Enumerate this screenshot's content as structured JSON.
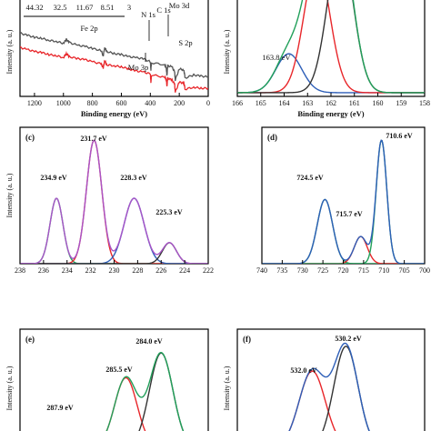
{
  "chart_data": [
    {
      "panel": "a",
      "panel_label": "",
      "type": "line",
      "xlabel": "Binding energy (eV)",
      "ylabel": "Intensity (a. u.)",
      "xlim": [
        1300,
        0
      ],
      "x_ticks": [
        1200,
        1000,
        800,
        600,
        400,
        200,
        0
      ],
      "table_values": [
        "44.32",
        "32.5",
        "11.67",
        "8.51",
        "3"
      ],
      "annotations": [
        "Fe 2p",
        "N 1s",
        "C 1s",
        "Mo 3d",
        "Mo 3p",
        "S 2p"
      ],
      "series": [
        {
          "name": "",
          "color": "#555555",
          "x": [
            1300,
            1250,
            1200,
            1150,
            1100,
            1050,
            1000,
            980,
            960,
            900,
            850,
            800,
            740,
            725,
            715,
            700,
            650,
            600,
            550,
            500,
            450,
            400,
            396,
            392,
            300,
            290,
            285,
            280,
            250,
            232,
            228,
            200,
            170,
            164,
            160,
            100,
            50,
            0
          ],
          "y": [
            62,
            60,
            58,
            57,
            55,
            54,
            52,
            56,
            53,
            50,
            49,
            47,
            45,
            40,
            48,
            44,
            42,
            41,
            39,
            38,
            37,
            34,
            26,
            33,
            31,
            28,
            20,
            30,
            29,
            24,
            16,
            27,
            26,
            23,
            18,
            21,
            20,
            19
          ]
        },
        {
          "name": "",
          "color": "#e8262a",
          "x": [
            1300,
            1250,
            1200,
            1150,
            1100,
            1050,
            1000,
            980,
            960,
            900,
            850,
            800,
            740,
            725,
            715,
            700,
            650,
            600,
            550,
            500,
            450,
            400,
            396,
            392,
            300,
            290,
            285,
            280,
            250,
            232,
            228,
            200,
            170,
            164,
            160,
            100,
            50,
            0
          ],
          "y": [
            48,
            46,
            44,
            43,
            41,
            40,
            38,
            42,
            39,
            37,
            36,
            34,
            32,
            28,
            35,
            31,
            30,
            29,
            27,
            25,
            24,
            22,
            14,
            21,
            19,
            17,
            10,
            18,
            16,
            12,
            4,
            14,
            13,
            11,
            7,
            9,
            8,
            8
          ]
        }
      ]
    },
    {
      "panel": "b",
      "panel_label": "",
      "type": "line",
      "xlabel": "Binding energy (eV)",
      "ylabel": "Intensity (a. u.)",
      "xlim": [
        166,
        158
      ],
      "x_ticks": [
        166,
        165,
        164,
        163,
        162,
        161,
        160,
        159,
        158
      ],
      "peak_labels": [
        "163.8 eV"
      ],
      "peaks": [
        {
          "center": 163.8,
          "height": 0.42,
          "width": 0.55,
          "color": "#2e5fb8"
        },
        {
          "center": 162.6,
          "height": 1.4,
          "width": 0.55,
          "color": "#e8262a"
        },
        {
          "center": 161.6,
          "height": 1.6,
          "width": 0.55,
          "color": "#333333"
        }
      ],
      "envelope_color": "#22a05a"
    },
    {
      "panel": "c",
      "panel_label": "(c)",
      "type": "line",
      "xlabel": "",
      "ylabel": "Intensity (a. u.)",
      "xlim": [
        238,
        222
      ],
      "x_ticks": [
        238,
        236,
        234,
        232,
        230,
        228,
        226,
        224,
        222
      ],
      "peak_labels": [
        "234.9 eV",
        "231.7 eV",
        "228.3 eV",
        "225.3 eV"
      ],
      "peaks": [
        {
          "center": 234.9,
          "height": 0.53,
          "width": 0.55,
          "color": "#22a05a"
        },
        {
          "center": 231.7,
          "height": 1.0,
          "width": 0.65,
          "color": "#e8262a"
        },
        {
          "center": 228.3,
          "height": 0.53,
          "width": 0.85,
          "color": "#2e5fb8"
        },
        {
          "center": 225.3,
          "height": 0.17,
          "width": 0.6,
          "color": "#333333"
        }
      ],
      "envelope_color": "#a855c8"
    },
    {
      "panel": "d",
      "panel_label": "(d)",
      "type": "line",
      "xlabel": "",
      "ylabel": "",
      "xlim": [
        740,
        700
      ],
      "x_ticks": [
        740,
        735,
        730,
        725,
        720,
        715,
        710,
        705,
        700
      ],
      "peak_labels": [
        "710.6 eV",
        "724.5 eV",
        "715.7 eV"
      ],
      "peaks": [
        {
          "center": 724.5,
          "height": 0.52,
          "width": 1.9,
          "color": "#22a05a"
        },
        {
          "center": 715.7,
          "height": 0.22,
          "width": 1.6,
          "color": "#e8262a"
        },
        {
          "center": 710.6,
          "height": 1.0,
          "width": 1.3,
          "color": "#22a05a"
        }
      ],
      "envelope_color": "#2e5fb8"
    },
    {
      "panel": "e",
      "panel_label": "(e)",
      "type": "line",
      "xlabel": "",
      "ylabel": "Intensity (a. u.)",
      "xlim": [
        290,
        282
      ],
      "x_ticks": [],
      "peak_labels": [
        "284.0 eV",
        "285.5 eV",
        "287.9 eV"
      ],
      "peaks": [
        {
          "center": 287.9,
          "height": 0.12,
          "width": 0.45,
          "color": "#2e5fb8"
        },
        {
          "center": 285.5,
          "height": 0.62,
          "width": 0.48,
          "color": "#e8262a"
        },
        {
          "center": 284.0,
          "height": 0.84,
          "width": 0.5,
          "color": "#333333"
        }
      ],
      "envelope_color": "#22a05a"
    },
    {
      "panel": "f",
      "panel_label": "(f)",
      "type": "line",
      "xlabel": "",
      "ylabel": "Intensity (a. u.)",
      "xlim": [
        536,
        526
      ],
      "x_ticks": [],
      "peak_labels": [
        "530.2 eV",
        "532.0 eV"
      ],
      "peaks": [
        {
          "center": 532.0,
          "height": 0.68,
          "width": 0.7,
          "color": "#e8262a"
        },
        {
          "center": 530.2,
          "height": 0.9,
          "width": 0.65,
          "color": "#333333"
        }
      ],
      "envelope_color": "#2e5fb8"
    }
  ]
}
